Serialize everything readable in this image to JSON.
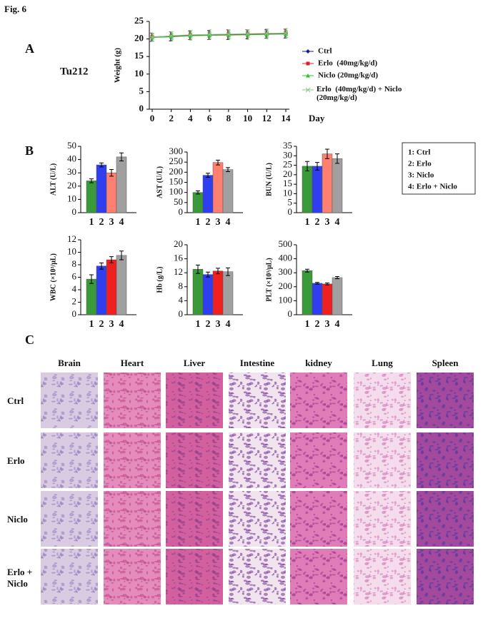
{
  "figure_label": "Fig. 6",
  "panels": [
    "A",
    "B",
    "C"
  ],
  "cell_line": "Tu212",
  "bar_key": [
    "1: Ctrl",
    "2: Erlo",
    "3: Niclo",
    "4: Erlo + Niclo"
  ],
  "histology": {
    "columns": [
      "Brain",
      "Heart",
      "Liver",
      "Intestine",
      "kidney",
      "Lung",
      "Spleen"
    ],
    "rows": [
      "Ctrl",
      "Erlo",
      "Niclo",
      "Erlo + Niclo"
    ]
  },
  "chart_data": [
    {
      "type": "line",
      "xlabel": "Day",
      "ylabel": "Weight (g)",
      "x": [
        0,
        2,
        4,
        6,
        8,
        10,
        12,
        14
      ],
      "xlim": [
        0,
        14
      ],
      "xticks": [
        0,
        2,
        4,
        6,
        8,
        10,
        12,
        14
      ],
      "ylim": [
        0,
        25
      ],
      "yticks": [
        0,
        5,
        10,
        15,
        20,
        25
      ],
      "series": [
        {
          "name": "Ctrl",
          "color": "#1a1a8c",
          "values": [
            20.5,
            20.7,
            21.0,
            21.1,
            21.2,
            21.3,
            21.4,
            21.5
          ],
          "errors": [
            1.2,
            1.3,
            1.2,
            1.3,
            1.4,
            1.3,
            1.2,
            1.3
          ]
        },
        {
          "name": "Erlo  (40mg/kg/d)",
          "color": "#e02020",
          "values": [
            20.6,
            20.8,
            21.1,
            21.0,
            21.3,
            21.4,
            21.5,
            21.6
          ],
          "errors": [
            1.1,
            1.2,
            1.3,
            1.2,
            1.3,
            1.2,
            1.3,
            1.2
          ]
        },
        {
          "name": "Niclo (20mg/kg/d)",
          "color": "#30c030",
          "values": [
            20.4,
            20.6,
            20.9,
            21.0,
            21.1,
            21.2,
            21.3,
            21.4
          ],
          "errors": [
            1.0,
            1.1,
            1.2,
            1.1,
            1.2,
            1.3,
            1.2,
            1.1
          ]
        },
        {
          "name": "Erlo  (40mg/kg/d) + Niclo (20mg/kg/d)",
          "color": "#80c890",
          "values": [
            20.5,
            20.9,
            21.2,
            21.3,
            21.4,
            21.5,
            21.6,
            21.7
          ],
          "errors": [
            1.2,
            1.1,
            1.2,
            1.3,
            1.2,
            1.1,
            1.2,
            1.3
          ]
        }
      ]
    },
    {
      "type": "bar",
      "ylabel": "ALT (U/L)",
      "categories": [
        "1",
        "2",
        "3",
        "4"
      ],
      "values": [
        24,
        36,
        30,
        42
      ],
      "errors": [
        1.5,
        1.5,
        2.5,
        3
      ],
      "colors": [
        "#3a9a3a",
        "#2f3ff0",
        "#ff8070",
        "#a0a0a0"
      ],
      "ylim": [
        0,
        50
      ],
      "yticks": [
        0,
        10,
        20,
        30,
        40,
        50
      ]
    },
    {
      "type": "bar",
      "ylabel": "AST (U/L)",
      "categories": [
        "1",
        "2",
        "3",
        "4"
      ],
      "values": [
        100,
        185,
        248,
        213
      ],
      "errors": [
        8,
        10,
        12,
        10
      ],
      "colors": [
        "#3a9a3a",
        "#2f3ff0",
        "#ff8070",
        "#a0a0a0"
      ],
      "ylim": [
        0,
        300
      ],
      "yticks": [
        0,
        50,
        100,
        150,
        200,
        250,
        300
      ]
    },
    {
      "type": "bar",
      "ylabel": "BUN (U/L)",
      "categories": [
        "1",
        "2",
        "3",
        "4"
      ],
      "values": [
        24.5,
        24.5,
        31,
        28.5
      ],
      "errors": [
        2.5,
        2,
        2.5,
        2.5
      ],
      "colors": [
        "#3a9a3a",
        "#2f3ff0",
        "#ff8070",
        "#a0a0a0"
      ],
      "ylim": [
        0,
        35
      ],
      "yticks": [
        0,
        5,
        10,
        15,
        20,
        25,
        30,
        35
      ]
    },
    {
      "type": "bar",
      "ylabel": "WBC (×10³/μL)",
      "categories": [
        "1",
        "2",
        "3",
        "4"
      ],
      "values": [
        5.7,
        7.8,
        8.8,
        9.5
      ],
      "errors": [
        0.7,
        0.5,
        0.5,
        0.7
      ],
      "colors": [
        "#3a9a3a",
        "#2f3ff0",
        "#f02020",
        "#a0a0a0"
      ],
      "ylim": [
        0,
        12
      ],
      "yticks": [
        0,
        2,
        4,
        6,
        8,
        10,
        12
      ]
    },
    {
      "type": "bar",
      "ylabel": "Hb (g/L)",
      "categories": [
        "1",
        "2",
        "3",
        "4"
      ],
      "values": [
        13,
        11.5,
        12.5,
        12.3
      ],
      "errors": [
        1.2,
        0.7,
        0.8,
        1.1
      ],
      "colors": [
        "#3a9a3a",
        "#2f3ff0",
        "#f02020",
        "#a0a0a0"
      ],
      "ylim": [
        0,
        20
      ],
      "yticks": [
        0,
        4,
        8,
        12,
        16,
        20
      ]
    },
    {
      "type": "bar",
      "ylabel": "PLT (×10³/μL)",
      "categories": [
        "1",
        "2",
        "3",
        "4"
      ],
      "values": [
        315,
        225,
        220,
        265
      ],
      "errors": [
        10,
        6,
        7,
        8
      ],
      "colors": [
        "#3a9a3a",
        "#2f3ff0",
        "#f02020",
        "#a0a0a0"
      ],
      "ylim": [
        0,
        500
      ],
      "yticks": [
        0,
        100,
        200,
        300,
        400,
        500
      ]
    }
  ]
}
